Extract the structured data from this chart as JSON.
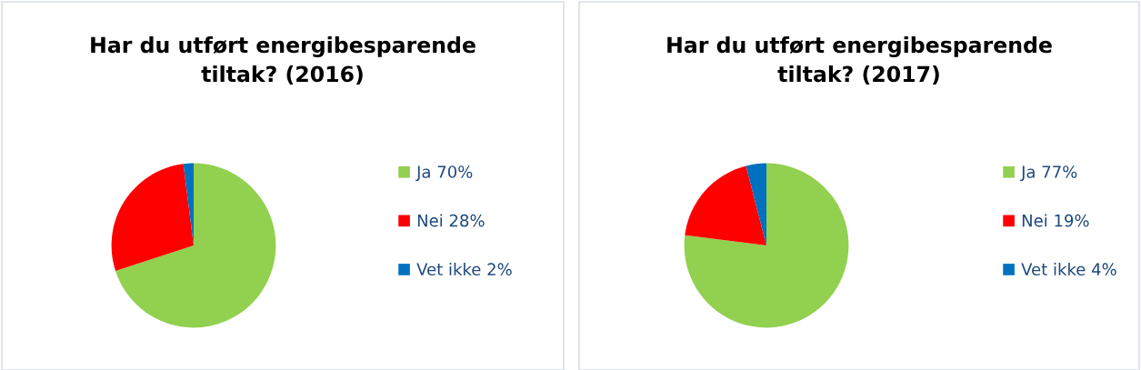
{
  "chart_data": [
    {
      "type": "pie",
      "title": "Har du utført energibesparende tiltak? (2016)",
      "categories": [
        "Ja 70%",
        "Nei 28%",
        "Vet ikke 2%"
      ],
      "values": [
        70,
        28,
        2
      ],
      "colors": [
        "#92d050",
        "#ff0000",
        "#0070c0"
      ],
      "legend": "right"
    },
    {
      "type": "pie",
      "title": "Har du utført energibesparende tiltak? (2017)",
      "categories": [
        "Ja 77%",
        "Nei 19%",
        "Vet ikke 4%"
      ],
      "values": [
        77,
        19,
        4
      ],
      "colors": [
        "#92d050",
        "#ff0000",
        "#0070c0"
      ],
      "legend": "right"
    }
  ]
}
